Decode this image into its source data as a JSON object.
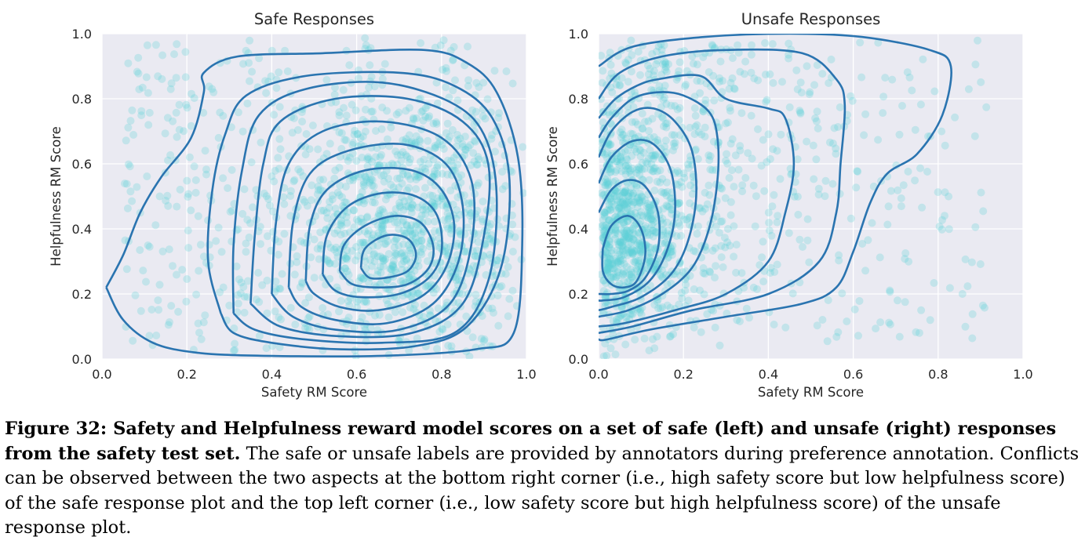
{
  "chart_data": [
    {
      "type": "scatter",
      "subtype": "scatter with KDE contour overlay",
      "title": "Safe Responses",
      "xlabel": "Safety RM Score",
      "ylabel": "Helpfulness RM Score",
      "xlim": [
        0.0,
        1.0
      ],
      "ylim": [
        0.0,
        1.0
      ],
      "xticks": [
        "0.0",
        "0.2",
        "0.4",
        "0.6",
        "0.8",
        "1.0"
      ],
      "yticks": [
        "0.0",
        "0.2",
        "0.4",
        "0.6",
        "0.8",
        "1.0"
      ],
      "grid": true,
      "point_color": "#5ecfd6",
      "contour_color": "#2a74b0",
      "density_peak": {
        "x": 0.72,
        "y": 0.3
      },
      "contours": [
        [
          [
            0.01,
            0.22
          ],
          [
            0.05,
            0.32
          ],
          [
            0.09,
            0.45
          ],
          [
            0.14,
            0.56
          ],
          [
            0.21,
            0.68
          ],
          [
            0.24,
            0.82
          ],
          [
            0.24,
            0.88
          ],
          [
            0.32,
            0.93
          ],
          [
            0.52,
            0.94
          ],
          [
            0.76,
            0.95
          ],
          [
            0.86,
            0.91
          ],
          [
            0.93,
            0.82
          ],
          [
            0.98,
            0.62
          ],
          [
            0.99,
            0.35
          ],
          [
            0.97,
            0.08
          ],
          [
            0.88,
            0.03
          ],
          [
            0.66,
            0.01
          ],
          [
            0.38,
            0.01
          ],
          [
            0.22,
            0.02
          ],
          [
            0.12,
            0.05
          ],
          [
            0.05,
            0.12
          ],
          [
            0.01,
            0.22
          ]
        ],
        [
          [
            0.28,
            0.14
          ],
          [
            0.25,
            0.3
          ],
          [
            0.26,
            0.52
          ],
          [
            0.29,
            0.69
          ],
          [
            0.34,
            0.81
          ],
          [
            0.48,
            0.87
          ],
          [
            0.7,
            0.88
          ],
          [
            0.83,
            0.84
          ],
          [
            0.92,
            0.74
          ],
          [
            0.96,
            0.55
          ],
          [
            0.94,
            0.28
          ],
          [
            0.86,
            0.1
          ],
          [
            0.74,
            0.04
          ],
          [
            0.56,
            0.03
          ],
          [
            0.4,
            0.05
          ],
          [
            0.31,
            0.08
          ],
          [
            0.28,
            0.14
          ]
        ],
        [
          [
            0.31,
            0.14
          ],
          [
            0.31,
            0.35
          ],
          [
            0.33,
            0.58
          ],
          [
            0.37,
            0.75
          ],
          [
            0.48,
            0.83
          ],
          [
            0.66,
            0.85
          ],
          [
            0.82,
            0.79
          ],
          [
            0.9,
            0.69
          ],
          [
            0.93,
            0.5
          ],
          [
            0.91,
            0.24
          ],
          [
            0.83,
            0.08
          ],
          [
            0.66,
            0.05
          ],
          [
            0.48,
            0.06
          ],
          [
            0.36,
            0.09
          ],
          [
            0.31,
            0.14
          ]
        ],
        [
          [
            0.35,
            0.17
          ],
          [
            0.36,
            0.38
          ],
          [
            0.38,
            0.6
          ],
          [
            0.42,
            0.73
          ],
          [
            0.55,
            0.8
          ],
          [
            0.72,
            0.8
          ],
          [
            0.85,
            0.73
          ],
          [
            0.91,
            0.6
          ],
          [
            0.9,
            0.38
          ],
          [
            0.85,
            0.17
          ],
          [
            0.73,
            0.08
          ],
          [
            0.56,
            0.07
          ],
          [
            0.42,
            0.1
          ],
          [
            0.35,
            0.17
          ]
        ],
        [
          [
            0.4,
            0.2
          ],
          [
            0.41,
            0.42
          ],
          [
            0.44,
            0.6
          ],
          [
            0.52,
            0.7
          ],
          [
            0.66,
            0.73
          ],
          [
            0.8,
            0.68
          ],
          [
            0.87,
            0.55
          ],
          [
            0.87,
            0.35
          ],
          [
            0.82,
            0.17
          ],
          [
            0.7,
            0.09
          ],
          [
            0.55,
            0.09
          ],
          [
            0.45,
            0.13
          ],
          [
            0.4,
            0.2
          ]
        ],
        [
          [
            0.44,
            0.22
          ],
          [
            0.45,
            0.42
          ],
          [
            0.49,
            0.57
          ],
          [
            0.58,
            0.64
          ],
          [
            0.71,
            0.66
          ],
          [
            0.81,
            0.6
          ],
          [
            0.85,
            0.47
          ],
          [
            0.84,
            0.3
          ],
          [
            0.78,
            0.17
          ],
          [
            0.67,
            0.11
          ],
          [
            0.55,
            0.12
          ],
          [
            0.47,
            0.16
          ],
          [
            0.44,
            0.22
          ]
        ],
        [
          [
            0.48,
            0.24
          ],
          [
            0.49,
            0.41
          ],
          [
            0.53,
            0.52
          ],
          [
            0.62,
            0.58
          ],
          [
            0.73,
            0.58
          ],
          [
            0.8,
            0.52
          ],
          [
            0.83,
            0.41
          ],
          [
            0.81,
            0.28
          ],
          [
            0.75,
            0.19
          ],
          [
            0.65,
            0.15
          ],
          [
            0.56,
            0.16
          ],
          [
            0.5,
            0.2
          ],
          [
            0.48,
            0.24
          ]
        ],
        [
          [
            0.52,
            0.26
          ],
          [
            0.53,
            0.38
          ],
          [
            0.58,
            0.47
          ],
          [
            0.66,
            0.51
          ],
          [
            0.74,
            0.5
          ],
          [
            0.79,
            0.44
          ],
          [
            0.8,
            0.33
          ],
          [
            0.77,
            0.25
          ],
          [
            0.7,
            0.2
          ],
          [
            0.61,
            0.19
          ],
          [
            0.55,
            0.21
          ],
          [
            0.52,
            0.26
          ]
        ],
        [
          [
            0.56,
            0.27
          ],
          [
            0.57,
            0.35
          ],
          [
            0.62,
            0.41
          ],
          [
            0.69,
            0.44
          ],
          [
            0.75,
            0.42
          ],
          [
            0.78,
            0.35
          ],
          [
            0.77,
            0.28
          ],
          [
            0.72,
            0.23
          ],
          [
            0.65,
            0.22
          ],
          [
            0.59,
            0.23
          ],
          [
            0.56,
            0.27
          ]
        ],
        [
          [
            0.61,
            0.28
          ],
          [
            0.62,
            0.34
          ],
          [
            0.67,
            0.38
          ],
          [
            0.72,
            0.37
          ],
          [
            0.74,
            0.32
          ],
          [
            0.72,
            0.27
          ],
          [
            0.67,
            0.25
          ],
          [
            0.63,
            0.25
          ],
          [
            0.61,
            0.28
          ]
        ]
      ]
    },
    {
      "type": "scatter",
      "subtype": "scatter with KDE contour overlay",
      "title": "Unsafe Responses",
      "xlabel": "Safety RM Score",
      "ylabel": "Helpfulness RM Score",
      "xlim": [
        0.0,
        1.0
      ],
      "ylim": [
        0.0,
        1.0
      ],
      "xticks": [
        "0.0",
        "0.2",
        "0.4",
        "0.6",
        "0.8",
        "1.0"
      ],
      "yticks": [
        "0.0",
        "0.2",
        "0.4",
        "0.6",
        "0.8",
        "1.0"
      ],
      "grid": true,
      "point_color": "#5ecfd6",
      "contour_color": "#2a74b0",
      "density_peak": {
        "x": 0.06,
        "y": 0.28
      },
      "contours": [
        [
          [
            0.0,
            0.9
          ],
          [
            0.08,
            0.96
          ],
          [
            0.25,
            0.99
          ],
          [
            0.45,
            1.0
          ],
          [
            0.62,
            0.99
          ],
          [
            0.78,
            0.95
          ],
          [
            0.83,
            0.9
          ],
          [
            0.81,
            0.75
          ],
          [
            0.75,
            0.63
          ],
          [
            0.68,
            0.57
          ],
          [
            0.64,
            0.48
          ],
          [
            0.6,
            0.33
          ],
          [
            0.56,
            0.22
          ],
          [
            0.48,
            0.17
          ],
          [
            0.3,
            0.13
          ],
          [
            0.12,
            0.09
          ],
          [
            0.02,
            0.06
          ],
          [
            0.0,
            0.06
          ]
        ],
        [
          [
            0.0,
            0.8
          ],
          [
            0.05,
            0.88
          ],
          [
            0.15,
            0.93
          ],
          [
            0.3,
            0.95
          ],
          [
            0.48,
            0.94
          ],
          [
            0.56,
            0.86
          ],
          [
            0.58,
            0.78
          ],
          [
            0.57,
            0.6
          ],
          [
            0.56,
            0.45
          ],
          [
            0.52,
            0.3
          ],
          [
            0.4,
            0.2
          ],
          [
            0.22,
            0.15
          ],
          [
            0.08,
            0.1
          ],
          [
            0.0,
            0.08
          ]
        ],
        [
          [
            0.0,
            0.74
          ],
          [
            0.04,
            0.8
          ],
          [
            0.09,
            0.84
          ],
          [
            0.14,
            0.86
          ],
          [
            0.24,
            0.87
          ],
          [
            0.3,
            0.8
          ],
          [
            0.4,
            0.77
          ],
          [
            0.44,
            0.74
          ],
          [
            0.46,
            0.6
          ],
          [
            0.44,
            0.45
          ],
          [
            0.4,
            0.3
          ],
          [
            0.3,
            0.2
          ],
          [
            0.18,
            0.15
          ],
          [
            0.06,
            0.11
          ],
          [
            0.0,
            0.1
          ]
        ],
        [
          [
            0.0,
            0.68
          ],
          [
            0.03,
            0.74
          ],
          [
            0.08,
            0.8
          ],
          [
            0.14,
            0.82
          ],
          [
            0.2,
            0.81
          ],
          [
            0.26,
            0.76
          ],
          [
            0.28,
            0.68
          ],
          [
            0.28,
            0.55
          ],
          [
            0.26,
            0.4
          ],
          [
            0.22,
            0.28
          ],
          [
            0.15,
            0.2
          ],
          [
            0.07,
            0.15
          ],
          [
            0.0,
            0.13
          ]
        ],
        [
          [
            0.0,
            0.62
          ],
          [
            0.03,
            0.7
          ],
          [
            0.08,
            0.76
          ],
          [
            0.13,
            0.77
          ],
          [
            0.18,
            0.73
          ],
          [
            0.22,
            0.64
          ],
          [
            0.23,
            0.5
          ],
          [
            0.21,
            0.36
          ],
          [
            0.17,
            0.26
          ],
          [
            0.1,
            0.19
          ],
          [
            0.03,
            0.16
          ],
          [
            0.0,
            0.15
          ]
        ],
        [
          [
            0.0,
            0.54
          ],
          [
            0.03,
            0.62
          ],
          [
            0.08,
            0.67
          ],
          [
            0.13,
            0.66
          ],
          [
            0.17,
            0.58
          ],
          [
            0.18,
            0.45
          ],
          [
            0.16,
            0.33
          ],
          [
            0.12,
            0.24
          ],
          [
            0.06,
            0.19
          ],
          [
            0.01,
            0.18
          ],
          [
            0.0,
            0.18
          ]
        ],
        [
          [
            0.0,
            0.45
          ],
          [
            0.03,
            0.52
          ],
          [
            0.07,
            0.55
          ],
          [
            0.11,
            0.53
          ],
          [
            0.14,
            0.45
          ],
          [
            0.14,
            0.34
          ],
          [
            0.11,
            0.25
          ],
          [
            0.07,
            0.21
          ],
          [
            0.03,
            0.2
          ],
          [
            0.0,
            0.2
          ]
        ],
        [
          [
            0.01,
            0.34
          ],
          [
            0.03,
            0.41
          ],
          [
            0.07,
            0.44
          ],
          [
            0.1,
            0.4
          ],
          [
            0.11,
            0.32
          ],
          [
            0.09,
            0.24
          ],
          [
            0.06,
            0.22
          ],
          [
            0.03,
            0.23
          ],
          [
            0.01,
            0.27
          ],
          [
            0.01,
            0.34
          ]
        ]
      ]
    }
  ],
  "caption": {
    "bold": "Figure 32: Safety and Helpfulness reward model scores on a set of safe (left) and unsafe (right) responses from the safety test set.",
    "rest": " The safe or unsafe labels are provided by annotators during preference annotation. Conflicts can be observed between the two aspects at the bottom right corner (i.e., high safety score but low helpfulness score) of the safe response plot and the top left corner (i.e., low safety score but high helpfulness score) of the unsafe response plot."
  }
}
